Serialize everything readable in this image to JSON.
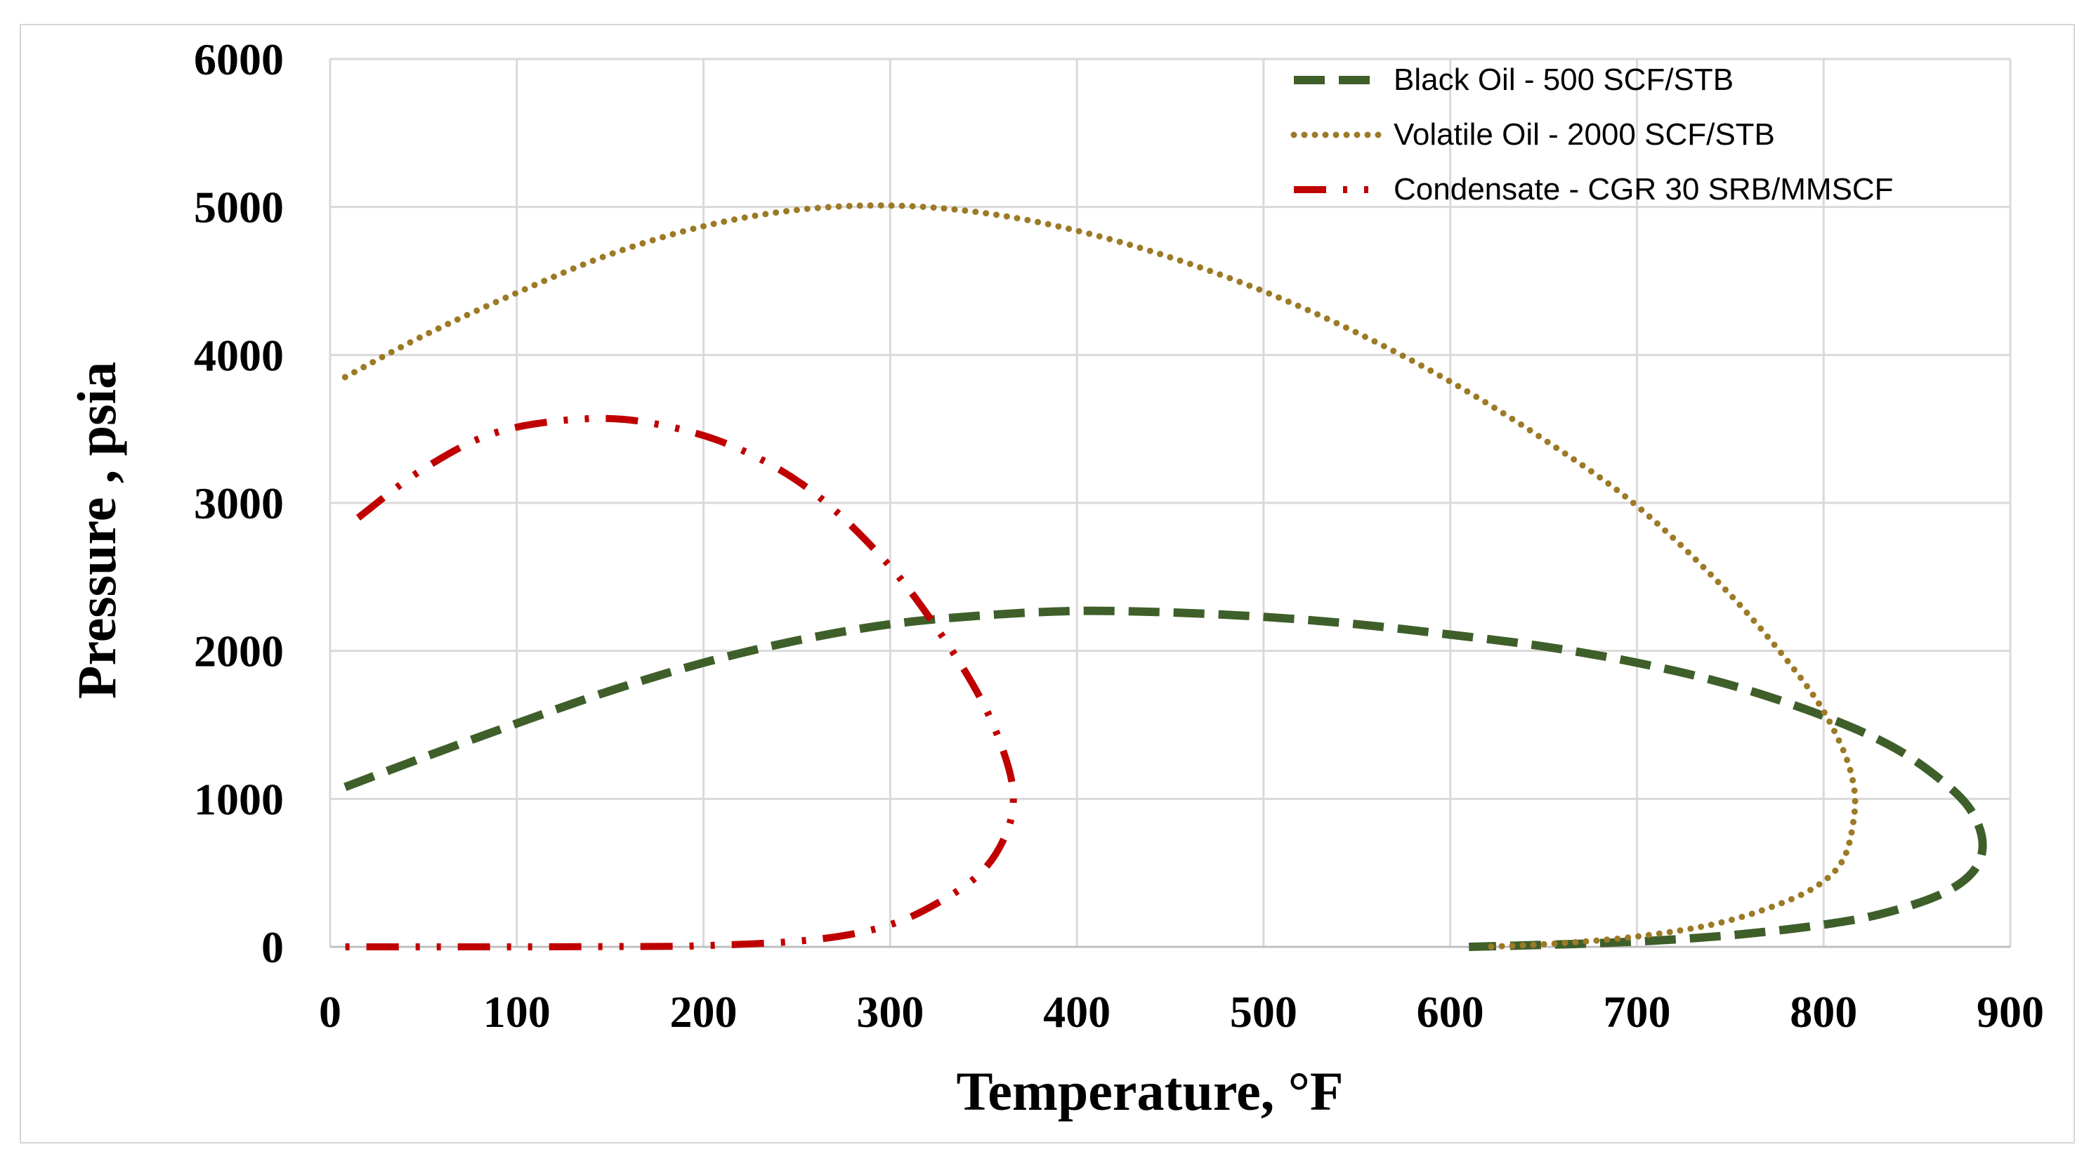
{
  "chart_data": {
    "type": "line",
    "title": "",
    "xlabel": "Temperature, °F",
    "ylabel": "Pressure , psia",
    "xlim": [
      0,
      900
    ],
    "ylim": [
      0,
      6000
    ],
    "xticks": [
      0,
      100,
      200,
      300,
      400,
      500,
      600,
      700,
      800,
      900
    ],
    "yticks": [
      0,
      1000,
      2000,
      3000,
      4000,
      5000,
      6000
    ],
    "xtick_labels": [
      "0",
      "100",
      "200",
      "300",
      "400",
      "500",
      "600",
      "700",
      "800",
      "900"
    ],
    "ytick_labels": [
      "0",
      "1000",
      "2000",
      "3000",
      "4000",
      "5000",
      "6000"
    ],
    "grid": true,
    "legend_position": "top-right",
    "series": [
      {
        "name": "Black Oil - 500 SCF/STB",
        "color": "#3f5f2a",
        "style": "dashed",
        "x": [
          8,
          50,
          100,
          150,
          200,
          250,
          300,
          350,
          400,
          450,
          500,
          550,
          600,
          650,
          700,
          750,
          800,
          840,
          870,
          882,
          885,
          878,
          860,
          830,
          800,
          760,
          720,
          680,
          640,
          610
        ],
        "y": [
          1080,
          1280,
          1510,
          1730,
          1920,
          2070,
          2180,
          2240,
          2270,
          2260,
          2230,
          2180,
          2110,
          2030,
          1920,
          1770,
          1560,
          1330,
          1050,
          850,
          650,
          480,
          340,
          220,
          150,
          90,
          50,
          25,
          10,
          0
        ]
      },
      {
        "name": "Volatile Oil - 2000 SCF/STB",
        "color": "#9c7a26",
        "style": "dotted",
        "x": [
          8,
          50,
          100,
          150,
          200,
          250,
          300,
          350,
          400,
          450,
          500,
          550,
          600,
          650,
          700,
          750,
          790,
          808,
          816,
          816,
          810,
          795,
          770,
          740,
          700,
          660,
          620
        ],
        "y": [
          3850,
          4130,
          4420,
          4680,
          4870,
          4980,
          5010,
          4960,
          4840,
          4660,
          4430,
          4150,
          3820,
          3430,
          2980,
          2380,
          1780,
          1400,
          1100,
          850,
          580,
          400,
          260,
          150,
          70,
          25,
          0
        ]
      },
      {
        "name": "Condensate - CGR 30 SRB/MMSCF",
        "color": "#c00000",
        "style": "dash-dot",
        "x": [
          15,
          50,
          90,
          140,
          180,
          220,
          260,
          300,
          330,
          350,
          362,
          366,
          362,
          350,
          330,
          300,
          260,
          200,
          150,
          100,
          50,
          0
        ],
        "y": [
          2900,
          3230,
          3480,
          3570,
          3520,
          3360,
          3060,
          2570,
          2060,
          1640,
          1270,
          1000,
          760,
          520,
          330,
          150,
          50,
          8,
          2,
          0,
          0,
          0
        ]
      }
    ]
  }
}
